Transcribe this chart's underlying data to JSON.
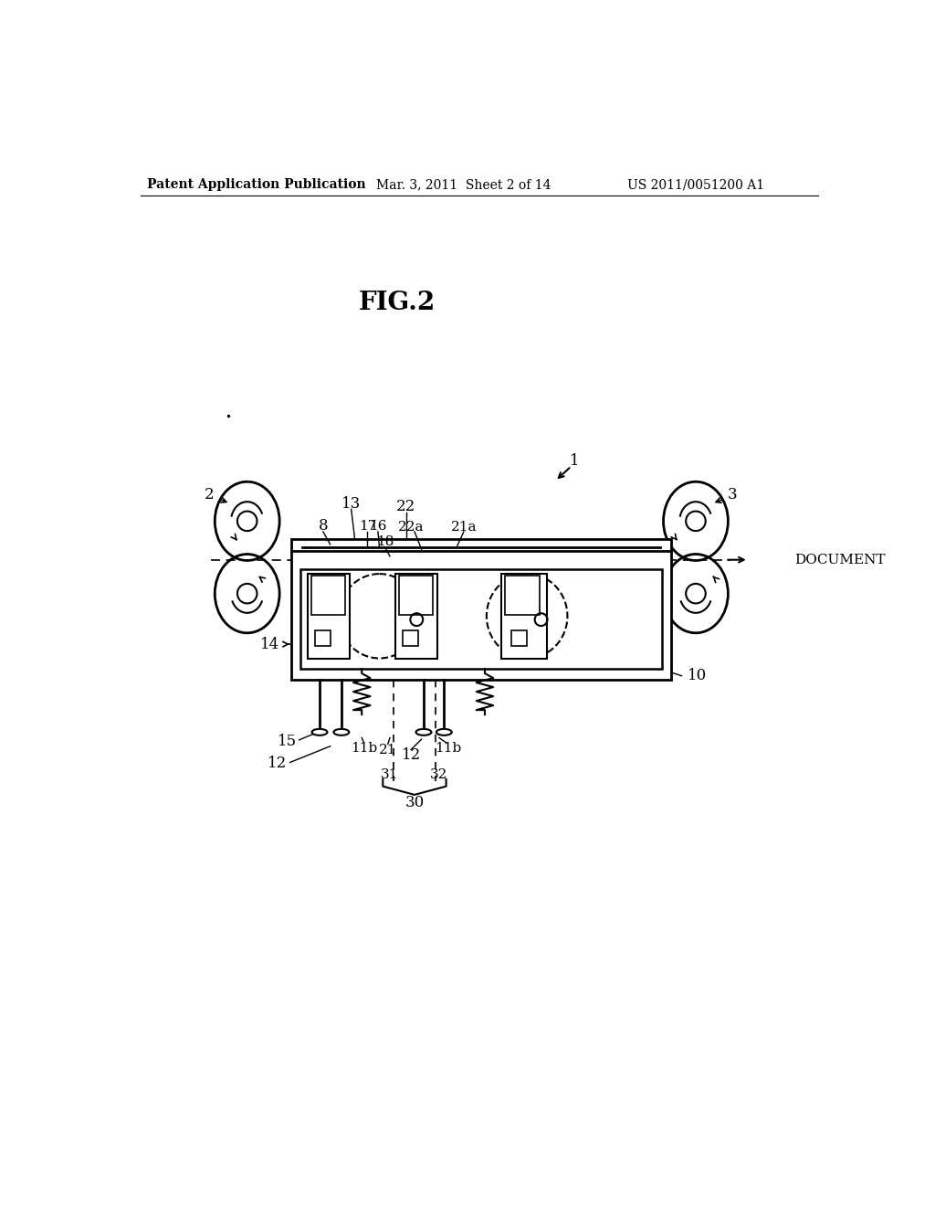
{
  "header_left": "Patent Application Publication",
  "header_mid": "Mar. 3, 2011  Sheet 2 of 14",
  "header_right": "US 2011/0051200 A1",
  "bg_color": "#ffffff",
  "line_color": "#000000",
  "fig_label": "FIG.2"
}
